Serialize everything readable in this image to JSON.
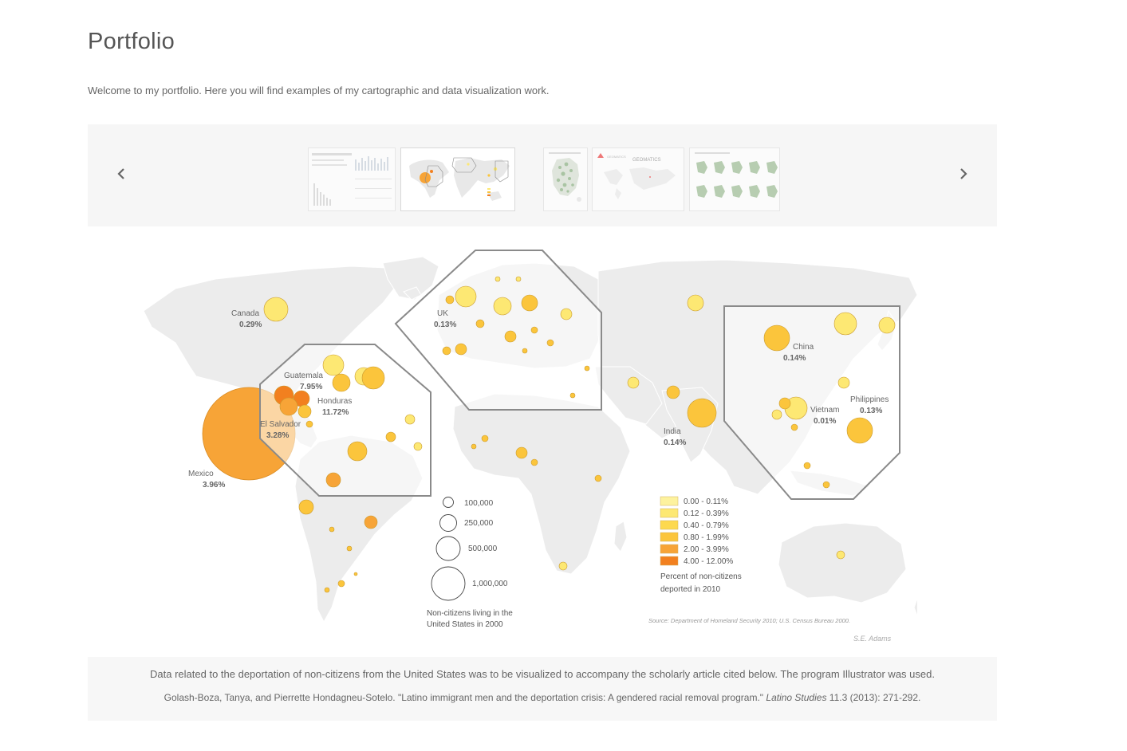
{
  "page": {
    "title": "Portfolio",
    "intro": "Welcome to my portfolio. Here you will find examples of my cartographic and data visualization work."
  },
  "carousel": {
    "prev_icon": "chevron-left-icon",
    "next_icon": "chevron-right-icon",
    "thumbnails": [
      {
        "name": "dashboard-thumbnail",
        "active": false
      },
      {
        "name": "deportation-map-thumbnail",
        "active": true
      },
      {
        "name": "green-dot-map-thumbnail",
        "active": false
      },
      {
        "name": "geomatics-thumbnail",
        "active": false,
        "text": "GEOMATICS"
      },
      {
        "name": "small-multiples-thumbnail",
        "active": false
      }
    ]
  },
  "map": {
    "colors": {
      "land": "#ececec",
      "land_stroke": "#ffffff",
      "inset_border": "#8a8a8a",
      "bubble_stroke": "#c99a2e"
    },
    "country_labels": [
      {
        "name": "Canada",
        "pct": "0.29%"
      },
      {
        "name": "UK",
        "pct": "0.13%"
      },
      {
        "name": "Guatemala",
        "pct": "7.95%"
      },
      {
        "name": "Honduras",
        "pct": "11.72%"
      },
      {
        "name": "El Salvador",
        "pct": "3.28%"
      },
      {
        "name": "Mexico",
        "pct": "3.96%"
      },
      {
        "name": "China",
        "pct": "0.14%"
      },
      {
        "name": "Philippines",
        "pct": "0.13%"
      },
      {
        "name": "Vietnam",
        "pct": "0.01%"
      },
      {
        "name": "India",
        "pct": "0.14%"
      }
    ],
    "size_legend": {
      "items": [
        "100,000",
        "250,000",
        "500,000",
        "1,000,000"
      ],
      "title_line1": "Non-citizens living in the",
      "title_line2": "United States in 2000"
    },
    "color_legend": {
      "items": [
        {
          "label": "0.00 - 0.11%",
          "color": "#fdf29e"
        },
        {
          "label": "0.12 - 0.39%",
          "color": "#fde873"
        },
        {
          "label": "0.40 - 0.79%",
          "color": "#fdd94f"
        },
        {
          "label": "0.80 - 1.99%",
          "color": "#fbc53c"
        },
        {
          "label": "2.00 - 3.99%",
          "color": "#f7a437"
        },
        {
          "label": "4.00 - 12.00%",
          "color": "#f2801f"
        }
      ],
      "title_line1": "Percent of non-citizens",
      "title_line2": "deported in 2010"
    },
    "source": "Source: Department of Homeland Security 2010; U.S. Census Bureau 2000.",
    "signature": "S.E. Adams"
  },
  "caption": {
    "main": "Data related to the deportation of non-citizens from the United States was to be visualized to accompany the scholarly article cited below. The program Illustrator was used.",
    "cite_before": "Golash-Boza, Tanya, and Pierrette Hondagneu-Sotelo. \"Latino immigrant men and the deportation crisis: A gendered racial removal program.\"",
    "cite_journal": "Latino Studies",
    "cite_after": "11.3 (2013): 271-292."
  }
}
